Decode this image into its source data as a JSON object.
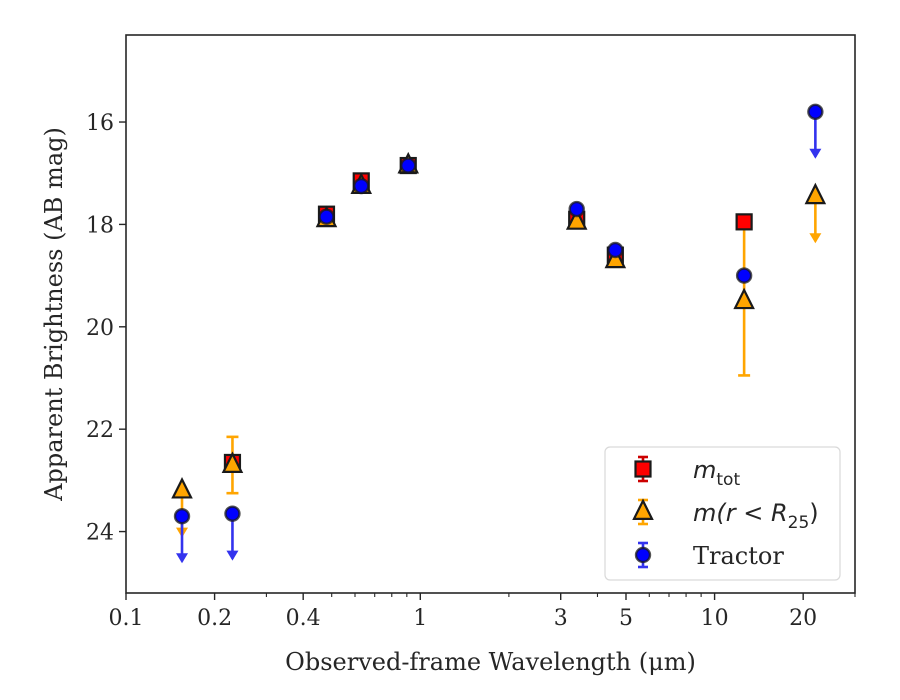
{
  "chart_data": {
    "type": "scatter",
    "xlabel": "Observed-frame Wavelength (μm)",
    "ylabel": "Apparent Brightness (AB mag)",
    "xscale": "log",
    "xlim": [
      0.1,
      30
    ],
    "ylim": [
      25.2,
      14.3
    ],
    "y_inverted": true,
    "xticks": [
      {
        "value": 0.1,
        "label": "0.1"
      },
      {
        "value": 0.2,
        "label": "0.2"
      },
      {
        "value": 0.4,
        "label": "0.4"
      },
      {
        "value": 1,
        "label": "1"
      },
      {
        "value": 3,
        "label": "3"
      },
      {
        "value": 5,
        "label": "5"
      },
      {
        "value": 10,
        "label": "10"
      },
      {
        "value": 20,
        "label": "20"
      }
    ],
    "yticks": [
      {
        "value": 16,
        "label": "16"
      },
      {
        "value": 18,
        "label": "18"
      },
      {
        "value": 20,
        "label": "20"
      },
      {
        "value": 22,
        "label": "22"
      },
      {
        "value": 24,
        "label": "24"
      }
    ],
    "legend": {
      "position": "lower right",
      "entries": [
        {
          "series": "mtot",
          "prefix": "m",
          "sub": "tot",
          "tail": ""
        },
        {
          "series": "mr25",
          "prefix": "m(r < R",
          "sub": "25",
          "tail": ")"
        },
        {
          "series": "tractor",
          "prefix": "Tractor",
          "sub": "",
          "tail": ""
        }
      ]
    },
    "series": [
      {
        "name": "m_tot",
        "key": "mtot",
        "marker": "square",
        "color": "#ff0000",
        "errcolor": "#cc0000",
        "points": [
          {
            "x": 0.23,
            "y": 22.65,
            "yerr": 0.12
          },
          {
            "x": 0.48,
            "y": 17.8,
            "yerr": 0.05
          },
          {
            "x": 0.63,
            "y": 17.15,
            "yerr": 0.05
          },
          {
            "x": 0.91,
            "y": 16.85,
            "yerr": 0.05
          },
          {
            "x": 3.4,
            "y": 17.9,
            "yerr": 0.05
          },
          {
            "x": 4.6,
            "y": 18.6,
            "yerr": 0.05
          },
          {
            "x": 12.6,
            "y": 17.95,
            "yerr": 0.05
          }
        ]
      },
      {
        "name": "m(r < R25)",
        "key": "mr25",
        "marker": "triangle",
        "color": "#ffa500",
        "errcolor": "#ffa500",
        "points": [
          {
            "x": 0.155,
            "y": 23.2,
            "upper_limit": true
          },
          {
            "x": 0.23,
            "y": 22.7,
            "yerr": 0.55
          },
          {
            "x": 0.48,
            "y": 17.9,
            "yerr": 0.05
          },
          {
            "x": 0.63,
            "y": 17.25,
            "yerr": 0.05
          },
          {
            "x": 0.91,
            "y": 16.85,
            "yerr": 0.05
          },
          {
            "x": 3.4,
            "y": 17.95,
            "yerr": 0.05
          },
          {
            "x": 4.6,
            "y": 18.7,
            "yerr": 0.05
          },
          {
            "x": 12.6,
            "y": 19.5,
            "yerr": 1.45
          },
          {
            "x": 22.0,
            "y": 17.45,
            "upper_limit": true
          }
        ]
      },
      {
        "name": "Tractor",
        "key": "tractor",
        "marker": "circle",
        "color": "#0000ff",
        "errcolor": "#3333ee",
        "points": [
          {
            "x": 0.155,
            "y": 23.7,
            "upper_limit": true
          },
          {
            "x": 0.23,
            "y": 23.65,
            "upper_limit": true
          },
          {
            "x": 0.48,
            "y": 17.85,
            "yerr": 0.05
          },
          {
            "x": 0.63,
            "y": 17.25,
            "yerr": 0.05
          },
          {
            "x": 0.91,
            "y": 16.85,
            "yerr": 0.05
          },
          {
            "x": 3.4,
            "y": 17.7,
            "yerr": 0.05
          },
          {
            "x": 4.6,
            "y": 18.5,
            "yerr": 0.05
          },
          {
            "x": 12.6,
            "y": 19.0,
            "yerr": 0.05
          },
          {
            "x": 22.0,
            "y": 15.8,
            "upper_limit": true
          }
        ]
      }
    ]
  }
}
